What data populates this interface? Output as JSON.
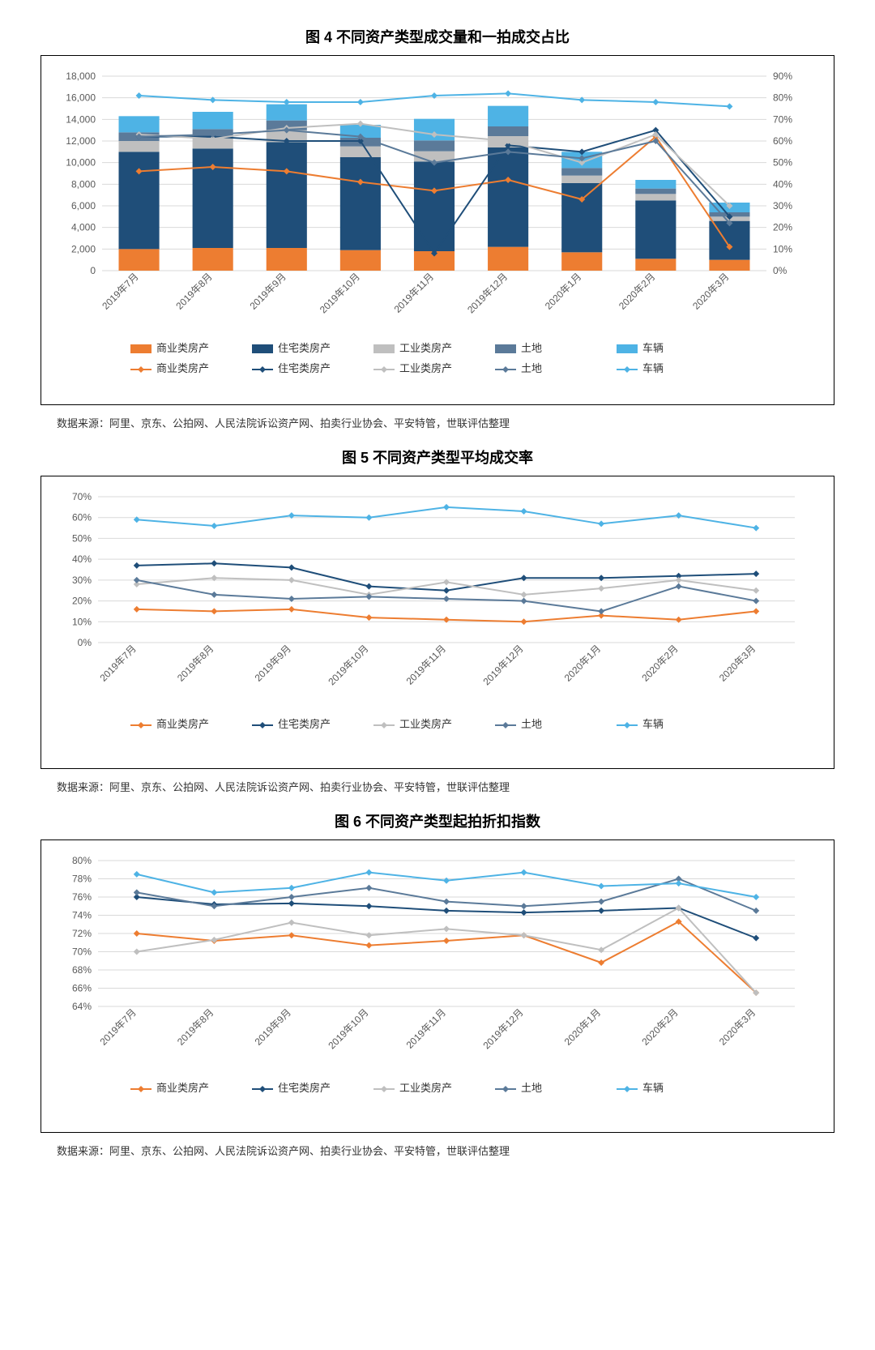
{
  "categories": [
    "2019年7月",
    "2019年8月",
    "2019年9月",
    "2019年10月",
    "2019年11月",
    "2019年12月",
    "2020年1月",
    "2020年2月",
    "2020年3月"
  ],
  "colors": {
    "commercial": "#ed7d31",
    "residential": "#1f4e79",
    "industrial": "#bfbfbf",
    "land": "#5b7a99",
    "vehicle": "#4eb3e5",
    "grid": "#d9d9d9",
    "text": "#595959"
  },
  "legend_bar": [
    "商业类房产",
    "住宅类房产",
    "工业类房产",
    "土地",
    "车辆"
  ],
  "legend_line": [
    "商业类房产",
    "住宅类房产",
    "工业类房产",
    "土地",
    "车辆"
  ],
  "source_text": "数据来源：阿里、京东、公拍网、人民法院诉讼资产网、拍卖行业协会、平安特管，世联评估整理",
  "chart4": {
    "title": "图 4 不同资产类型成交量和一拍成交占比",
    "y1_min": 0,
    "y1_max": 18000,
    "y1_step": 2000,
    "y2_min": 0,
    "y2_max": 90,
    "y2_step": 10,
    "bars": {
      "commercial": [
        2000,
        2100,
        2100,
        1900,
        1800,
        2200,
        1700,
        1100,
        1000
      ],
      "residential": [
        9000,
        9200,
        9800,
        8600,
        8300,
        9200,
        6400,
        5400,
        3600
      ],
      "industrial": [
        1000,
        1000,
        1100,
        1000,
        950,
        1050,
        700,
        600,
        400
      ],
      "land": [
        800,
        800,
        900,
        800,
        1000,
        900,
        700,
        500,
        400
      ],
      "vehicle": [
        1500,
        1600,
        1500,
        1200,
        2000,
        1900,
        1500,
        800,
        900
      ]
    },
    "lines_pct": {
      "commercial": [
        46,
        48,
        46,
        41,
        37,
        42,
        33,
        62,
        11
      ],
      "residential": [
        62,
        62,
        60,
        60,
        8,
        58,
        55,
        65,
        25
      ],
      "industrial": [
        63,
        61,
        66,
        68,
        63,
        60,
        50,
        63,
        30
      ],
      "land": [
        62,
        63,
        65,
        62,
        50,
        55,
        52,
        60,
        22
      ],
      "vehicle": [
        81,
        79,
        78,
        78,
        81,
        82,
        79,
        78,
        76
      ]
    }
  },
  "chart5": {
    "title": "图 5 不同资产类型平均成交率",
    "y_min": 0,
    "y_max": 70,
    "y_step": 10,
    "lines_pct": {
      "commercial": [
        16,
        15,
        16,
        12,
        11,
        10,
        13,
        11,
        15
      ],
      "residential": [
        37,
        38,
        36,
        27,
        25,
        31,
        31,
        32,
        33
      ],
      "industrial": [
        28,
        31,
        30,
        23,
        29,
        23,
        26,
        30,
        25
      ],
      "land": [
        30,
        23,
        21,
        22,
        21,
        20,
        15,
        27,
        20
      ],
      "vehicle": [
        59,
        56,
        61,
        60,
        65,
        63,
        57,
        61,
        55
      ]
    }
  },
  "chart6": {
    "title": "图 6 不同资产类型起拍折扣指数",
    "y_min": 64,
    "y_max": 80,
    "y_step": 2,
    "lines_pct": {
      "commercial": [
        72,
        71.2,
        71.8,
        70.7,
        71.2,
        71.8,
        68.8,
        73.3,
        65.5
      ],
      "residential": [
        76,
        75.2,
        75.3,
        75,
        74.5,
        74.3,
        74.5,
        74.8,
        71.5
      ],
      "industrial": [
        70,
        71.3,
        73.2,
        71.8,
        72.5,
        71.8,
        70.2,
        74.8,
        65.5
      ],
      "land": [
        76.5,
        75,
        76,
        77,
        75.5,
        75,
        75.5,
        78,
        74.5
      ],
      "vehicle": [
        78.5,
        76.5,
        77,
        78.7,
        77.8,
        78.7,
        77.2,
        77.5,
        76
      ]
    }
  }
}
